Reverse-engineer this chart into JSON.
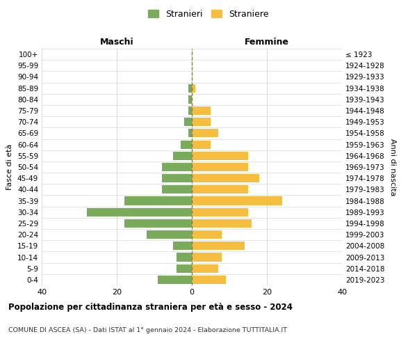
{
  "age_groups": [
    "0-4",
    "5-9",
    "10-14",
    "15-19",
    "20-24",
    "25-29",
    "30-34",
    "35-39",
    "40-44",
    "45-49",
    "50-54",
    "55-59",
    "60-64",
    "65-69",
    "70-74",
    "75-79",
    "80-84",
    "85-89",
    "90-94",
    "95-99",
    "100+"
  ],
  "birth_years": [
    "2019-2023",
    "2014-2018",
    "2009-2013",
    "2004-2008",
    "1999-2003",
    "1994-1998",
    "1989-1993",
    "1984-1988",
    "1979-1983",
    "1974-1978",
    "1969-1973",
    "1964-1968",
    "1959-1963",
    "1954-1958",
    "1949-1953",
    "1944-1948",
    "1939-1943",
    "1934-1938",
    "1929-1933",
    "1924-1928",
    "≤ 1923"
  ],
  "maschi": [
    9,
    4,
    4,
    5,
    12,
    18,
    28,
    18,
    8,
    8,
    8,
    5,
    3,
    1,
    2,
    1,
    1,
    1,
    0,
    0,
    0
  ],
  "femmine": [
    9,
    7,
    8,
    14,
    8,
    16,
    15,
    24,
    15,
    18,
    15,
    15,
    5,
    7,
    5,
    5,
    0,
    1,
    0,
    0,
    0
  ],
  "maschi_color": "#7aab5a",
  "femmine_color": "#f5be41",
  "center_line_color": "#808040",
  "grid_color": "#d8d8d8",
  "bg_color": "#ffffff",
  "title": "Popolazione per cittadinanza straniera per età e sesso - 2024",
  "subtitle": "COMUNE DI ASCEA (SA) - Dati ISTAT al 1° gennaio 2024 - Elaborazione TUTTITALIA.IT",
  "xlabel_maschi": "Maschi",
  "xlabel_femmine": "Femmine",
  "ylabel_left": "Fasce di età",
  "ylabel_right": "Anni di nascita",
  "legend_maschi": "Stranieri",
  "legend_femmine": "Straniere",
  "xlim": 40,
  "bar_height": 0.75
}
